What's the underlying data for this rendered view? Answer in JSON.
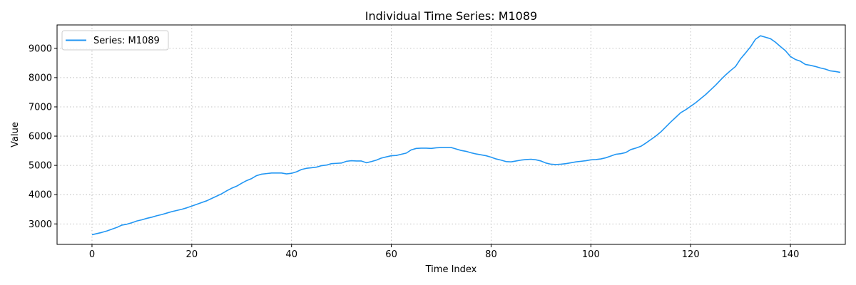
{
  "chart_data": {
    "type": "line",
    "title": "Individual Time Series: M1089",
    "xlabel": "Time Index",
    "ylabel": "Value",
    "xlim": [
      -7,
      151
    ],
    "ylim": [
      2300,
      9800
    ],
    "xticks": [
      0,
      20,
      40,
      60,
      80,
      100,
      120,
      140
    ],
    "yticks": [
      3000,
      4000,
      5000,
      6000,
      7000,
      8000,
      9000
    ],
    "grid": true,
    "legend_position": "top-left",
    "series": [
      {
        "name": "Series: M1089",
        "color": "#2196f3",
        "values": [
          2630,
          2670,
          2710,
          2760,
          2820,
          2880,
          2960,
          2990,
          3040,
          3100,
          3140,
          3190,
          3230,
          3280,
          3320,
          3370,
          3420,
          3460,
          3500,
          3550,
          3610,
          3670,
          3730,
          3790,
          3870,
          3950,
          4030,
          4130,
          4220,
          4290,
          4390,
          4480,
          4550,
          4650,
          4700,
          4720,
          4740,
          4740,
          4740,
          4710,
          4730,
          4780,
          4860,
          4900,
          4920,
          4940,
          4990,
          5010,
          5060,
          5070,
          5080,
          5140,
          5160,
          5150,
          5150,
          5090,
          5130,
          5180,
          5250,
          5290,
          5330,
          5340,
          5380,
          5420,
          5530,
          5580,
          5590,
          5590,
          5580,
          5600,
          5610,
          5610,
          5610,
          5560,
          5510,
          5480,
          5430,
          5390,
          5360,
          5330,
          5280,
          5220,
          5180,
          5130,
          5120,
          5150,
          5180,
          5200,
          5210,
          5190,
          5150,
          5080,
          5040,
          5030,
          5040,
          5060,
          5090,
          5120,
          5140,
          5160,
          5190,
          5200,
          5220,
          5260,
          5320,
          5380,
          5400,
          5440,
          5540,
          5590,
          5650,
          5760,
          5880,
          6000,
          6140,
          6310,
          6480,
          6640,
          6800,
          6900,
          7020,
          7140,
          7280,
          7420,
          7580,
          7740,
          7920,
          8090,
          8240,
          8380,
          8640,
          8840,
          9050,
          9310,
          9430,
          9380,
          9330,
          9210,
          9060,
          8920,
          8720,
          8620,
          8560,
          8450,
          8420,
          8380,
          8330,
          8290,
          8230,
          8210,
          8180
        ]
      }
    ]
  }
}
